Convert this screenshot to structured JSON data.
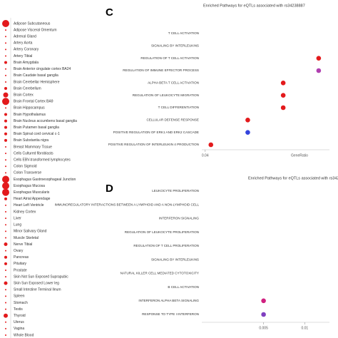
{
  "chart_data": [
    {
      "type": "dot-list",
      "categories": [
        "Adipose Subcutaneous",
        "Adipose Visceral Omentum",
        "Adrenal Gland",
        "Artery Aorta",
        "Artery Coronary",
        "Artery Tibial",
        "Brain Amygdala",
        "Brain Anterior cingulate cortex BA24",
        "Brain Caudate basal ganglia",
        "Brain Cerebellar Hemisphere",
        "Brain Cerebellum",
        "Brain Cortex",
        "Brain Frontal Cortex BA9",
        "Brain Hippocampus",
        "Brain Hypothalamus",
        "Brain Nucleus accumbens basal ganglia",
        "Brain Putamen basal ganglia",
        "Brain Spinal cord cervical c-1",
        "Brain Substantia nigra",
        "Breast Mammary Tissue",
        "Cells Cultured fibroblasts",
        "Cells EBV-transformed lymphocytes",
        "Colon Sigmoid",
        "Colon Transverse",
        "Esophagus Gastroesophageal Junction",
        "Esophagus Mucosa",
        "Esophagus Muscularis",
        "Heart Atrial Appendage",
        "Heart Left Ventricle",
        "Kidney Cortex",
        "Liver",
        "Lung",
        "Minor Salivary Gland",
        "Muscle Skeletal",
        "Nerve Tibial",
        "Ovary",
        "Pancreas",
        "Pituitary",
        "Prostate",
        "Skin Not Sun Exposed Suprapubic",
        "Skin Sun Exposed Lower leg",
        "Small Intestine Terminal Ileum",
        "Spleen",
        "Stomach",
        "Testis",
        "Thyroid",
        "Uterus",
        "Vagina",
        "Whole Blood"
      ],
      "values": [
        5,
        1,
        1,
        1,
        1,
        1,
        2,
        1,
        1,
        1,
        2,
        3.5,
        5,
        1,
        2,
        2,
        2,
        2,
        2,
        1,
        1,
        1,
        1,
        1,
        5,
        5,
        5,
        2,
        1,
        1,
        1,
        1,
        1,
        1,
        2.5,
        1,
        2,
        2,
        1,
        1,
        2.5,
        1,
        1,
        1,
        1,
        3,
        1,
        1,
        1
      ],
      "color": "#e31a1c"
    },
    {
      "type": "dot",
      "label": "C",
      "title": "Enriched Pathways for eQTLs associated with rs34238887",
      "categories": [
        "T CELL ACTIVATION",
        "SIGNALING BY INTERLEUKINS",
        "REGULATION OF T CELL ACTIVATION",
        "REGULATION OF IMMUNE EFFECTOR PROCESS",
        "ALPHA BETA T CELL ACTIVATION",
        "REGULATION OF LEUKOCYTE MIGRATION",
        "T CELL DIFFERENTIATION",
        "CELLULAR DEFENSE RESPONSE",
        "POSITIVE REGULATION OF ERK1 AND ERK2 CASCADE",
        "POSITIVE REGULATION OF INTERLEUKIN 4 PRODUCTION"
      ],
      "values": [
        null,
        null,
        0.08,
        0.08,
        0.0675,
        0.0675,
        0.0675,
        0.055,
        0.055,
        0.042
      ],
      "colors": [
        "#e31a1c",
        "#e31a1c",
        "#e31a1c",
        "#b040b0",
        "#e31a1c",
        "#e31a1c",
        "#e31a1c",
        "#e31a1c",
        "#3344dd",
        "#e31a1c"
      ],
      "xlim": [
        0.0388,
        0.0838
      ],
      "xticks": [
        0.04
      ],
      "xlabel": "GeneRatio"
    },
    {
      "type": "dot",
      "label": "D",
      "title": "Enriched Pathways for eQTLs associated with rs342",
      "categories": [
        "LEUKOCYTE PROLIFERATION",
        "IMMUNOREGULATORY INTERACTIONS BETWEEN A LYMPHOID AND A NON-LYMPHOID CELL",
        "INTERFERON SIGNALING",
        "REGULATION OF LEUKOCYTE PROLIFERATION",
        "REGULATION OF T CELL PROLIFERATION",
        "SIGNALING BY INTERLEUKINS",
        "NATURAL KILLER CELL MEDIATED CYTOTOXICITY",
        "B CELL ACTIVATION",
        "INTERFERON ALPHA BETA SIGNALING",
        "RESPONSE TO TYPE I INTERFERON"
      ],
      "values": [
        null,
        null,
        null,
        null,
        null,
        null,
        null,
        null,
        0.005,
        0.005
      ],
      "colors": [
        "#e31a1c",
        "#e31a1c",
        "#e31a1c",
        "#e31a1c",
        "#e31a1c",
        "#e31a1c",
        "#e31a1c",
        "#e31a1c",
        "#d02080",
        "#8040c0"
      ],
      "xlim": [
        -0.0025,
        0.013
      ],
      "xticks": [
        0.005,
        0.01
      ]
    }
  ]
}
